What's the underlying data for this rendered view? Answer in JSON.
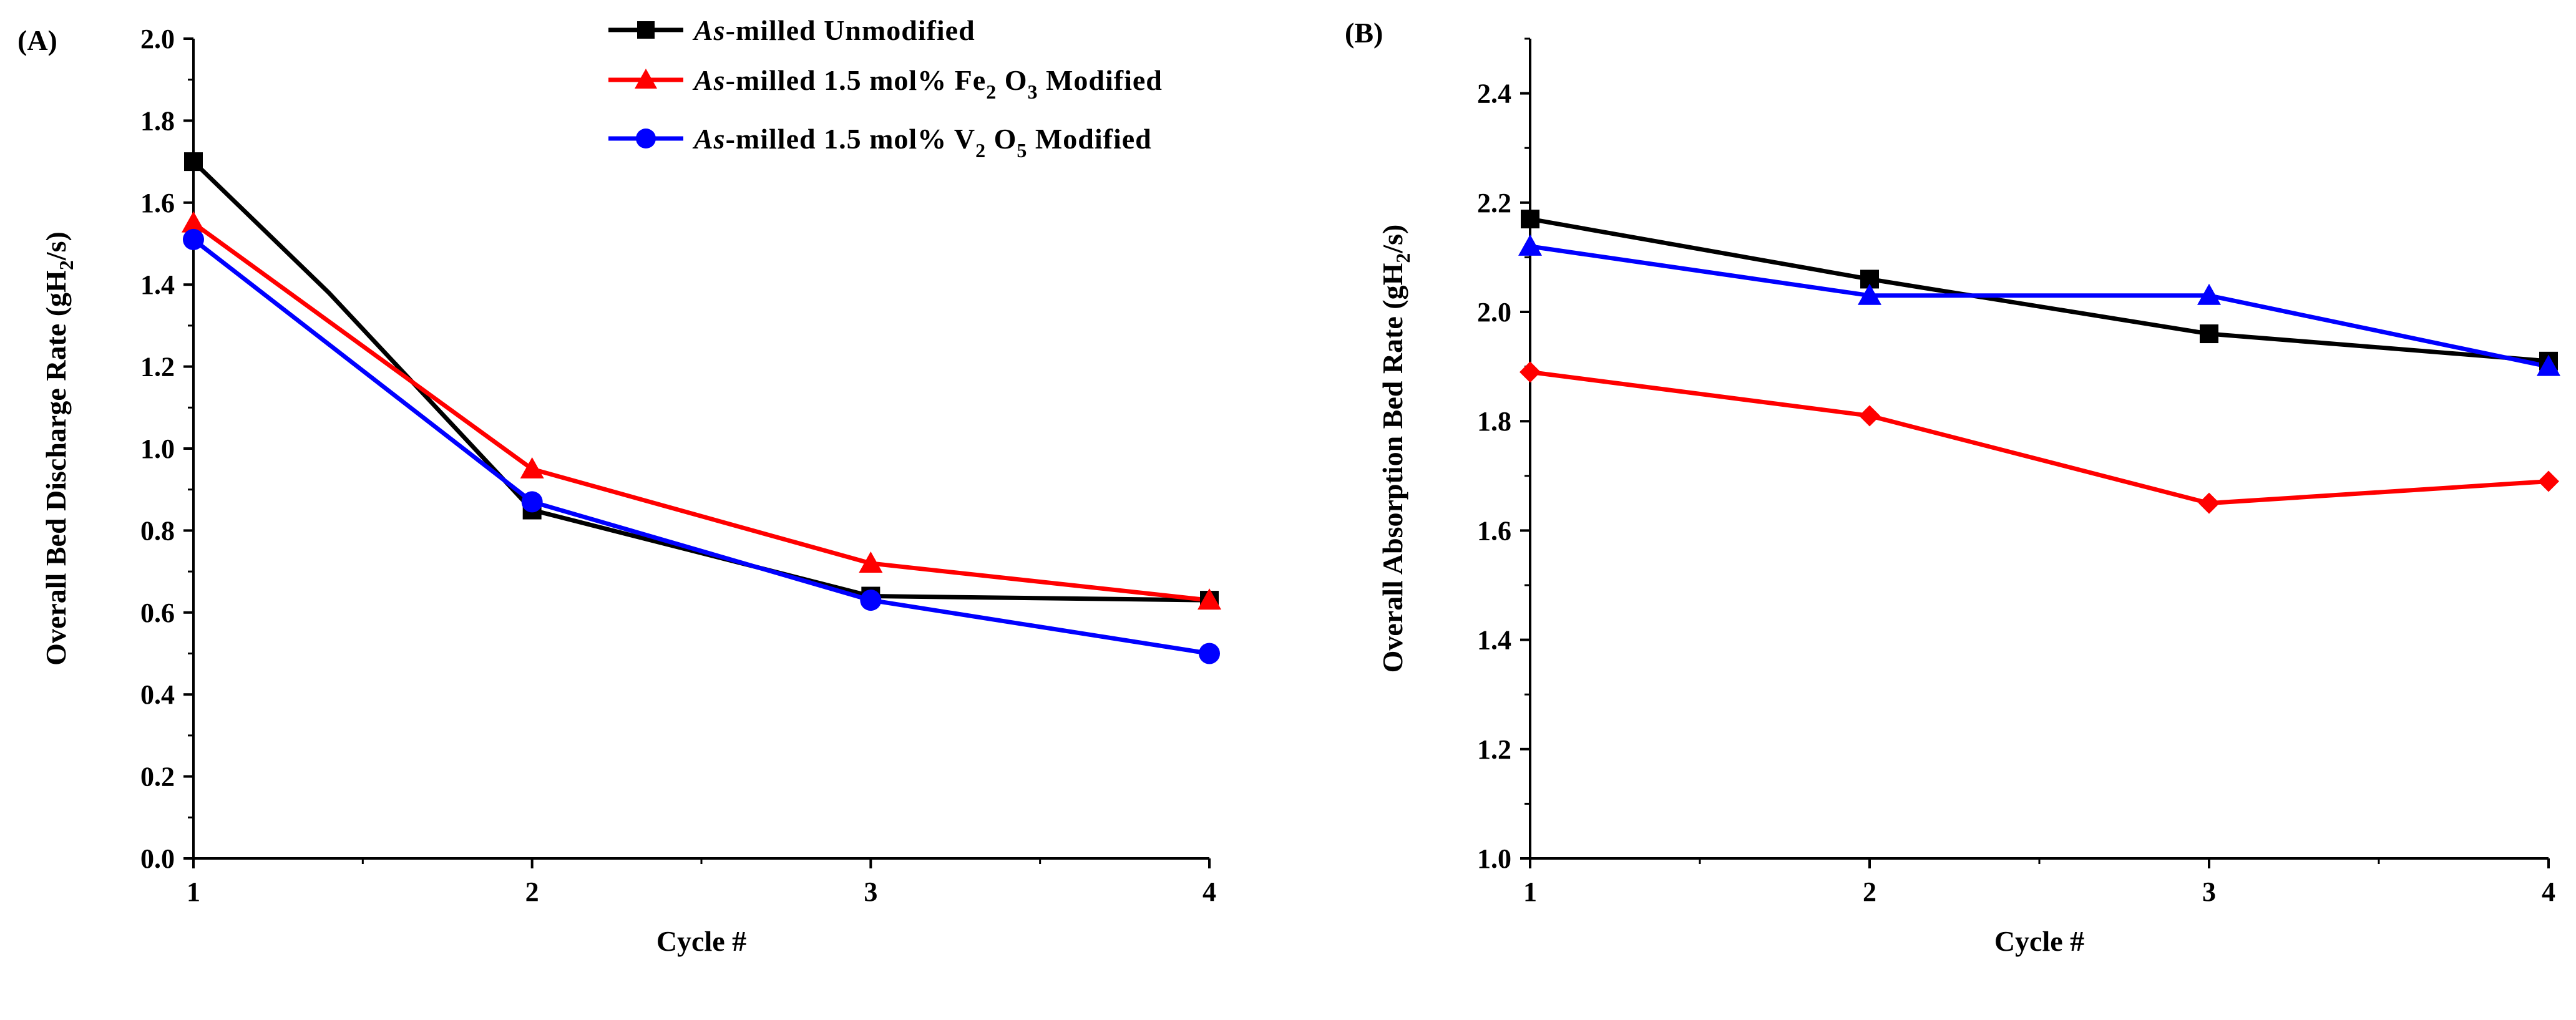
{
  "chart_data": [
    {
      "type": "line",
      "panel_label": "(A)",
      "xlabel": "Cycle #",
      "ylabel": {
        "main": "Overall Bed Discharge Rate (gH",
        "sub": "2",
        "tail": "/s)"
      },
      "x": [
        1,
        2,
        3,
        4
      ],
      "xlim": [
        1,
        4
      ],
      "ylim": [
        0.0,
        2.0
      ],
      "x_ticks": [
        "1",
        "2",
        "3",
        "4"
      ],
      "y_ticks": [
        "0.0",
        "0.2",
        "0.4",
        "0.6",
        "0.8",
        "1.0",
        "1.2",
        "1.4",
        "1.6",
        "1.8",
        "2.0"
      ],
      "legend_position": "top-right",
      "series": [
        {
          "name": "As-milled Unmodified",
          "color": "#000000",
          "marker": "square",
          "values": [
            1.7,
            0.85,
            0.64,
            0.63
          ],
          "unmarked_segment_through": [
            1.4,
            1.38
          ]
        },
        {
          "name": "As-milled 1.5 mol% Fe2O3 Modified",
          "color": "#ff0000",
          "marker": "triangle",
          "values": [
            1.55,
            0.95,
            0.72,
            0.63
          ]
        },
        {
          "name": "As-milled 1.5 mol% V2O5 Modified",
          "color": "#0000ff",
          "marker": "circle",
          "values": [
            1.51,
            0.87,
            0.63,
            0.5
          ]
        }
      ]
    },
    {
      "type": "line",
      "panel_label": "(B)",
      "xlabel": "Cycle #",
      "ylabel": {
        "main": "Overall Absorption Bed Rate (gH",
        "sub": "2",
        "tail": "/s)"
      },
      "x": [
        1,
        2,
        3,
        4
      ],
      "xlim": [
        1,
        4
      ],
      "ylim": [
        1.0,
        2.5
      ],
      "x_ticks": [
        "1",
        "2",
        "3",
        "4"
      ],
      "y_ticks": [
        "1.0",
        "1.2",
        "1.4",
        "1.6",
        "1.8",
        "2.0",
        "2.2",
        "2.4"
      ],
      "series": [
        {
          "name": "black",
          "color": "#000000",
          "marker": "square",
          "values": [
            2.17,
            2.06,
            1.96,
            1.91
          ]
        },
        {
          "name": "red",
          "color": "#ff0000",
          "marker": "diamond",
          "values": [
            1.89,
            1.81,
            1.65,
            1.69
          ]
        },
        {
          "name": "blue",
          "color": "#0000ff",
          "marker": "triangle",
          "values": [
            2.12,
            2.03,
            2.03,
            1.9
          ]
        }
      ]
    }
  ],
  "legend": {
    "items": [
      {
        "prefix": "As",
        "suffix": "-milled Unmodified",
        "color": "#000000",
        "marker": "square"
      },
      {
        "prefix": "As",
        "suffix": "-milled 1.5 mol%  Fe",
        "sub1": "2",
        "mid": " O",
        "sub2": "3",
        "tail": " Modified",
        "color": "#ff0000",
        "marker": "triangle"
      },
      {
        "prefix": "As",
        "suffix": "-milled 1.5 mol%  V",
        "sub1": "2",
        "mid": " O",
        "sub2": "5",
        "tail": "  Modified",
        "color": "#0000ff",
        "marker": "circle"
      }
    ]
  }
}
